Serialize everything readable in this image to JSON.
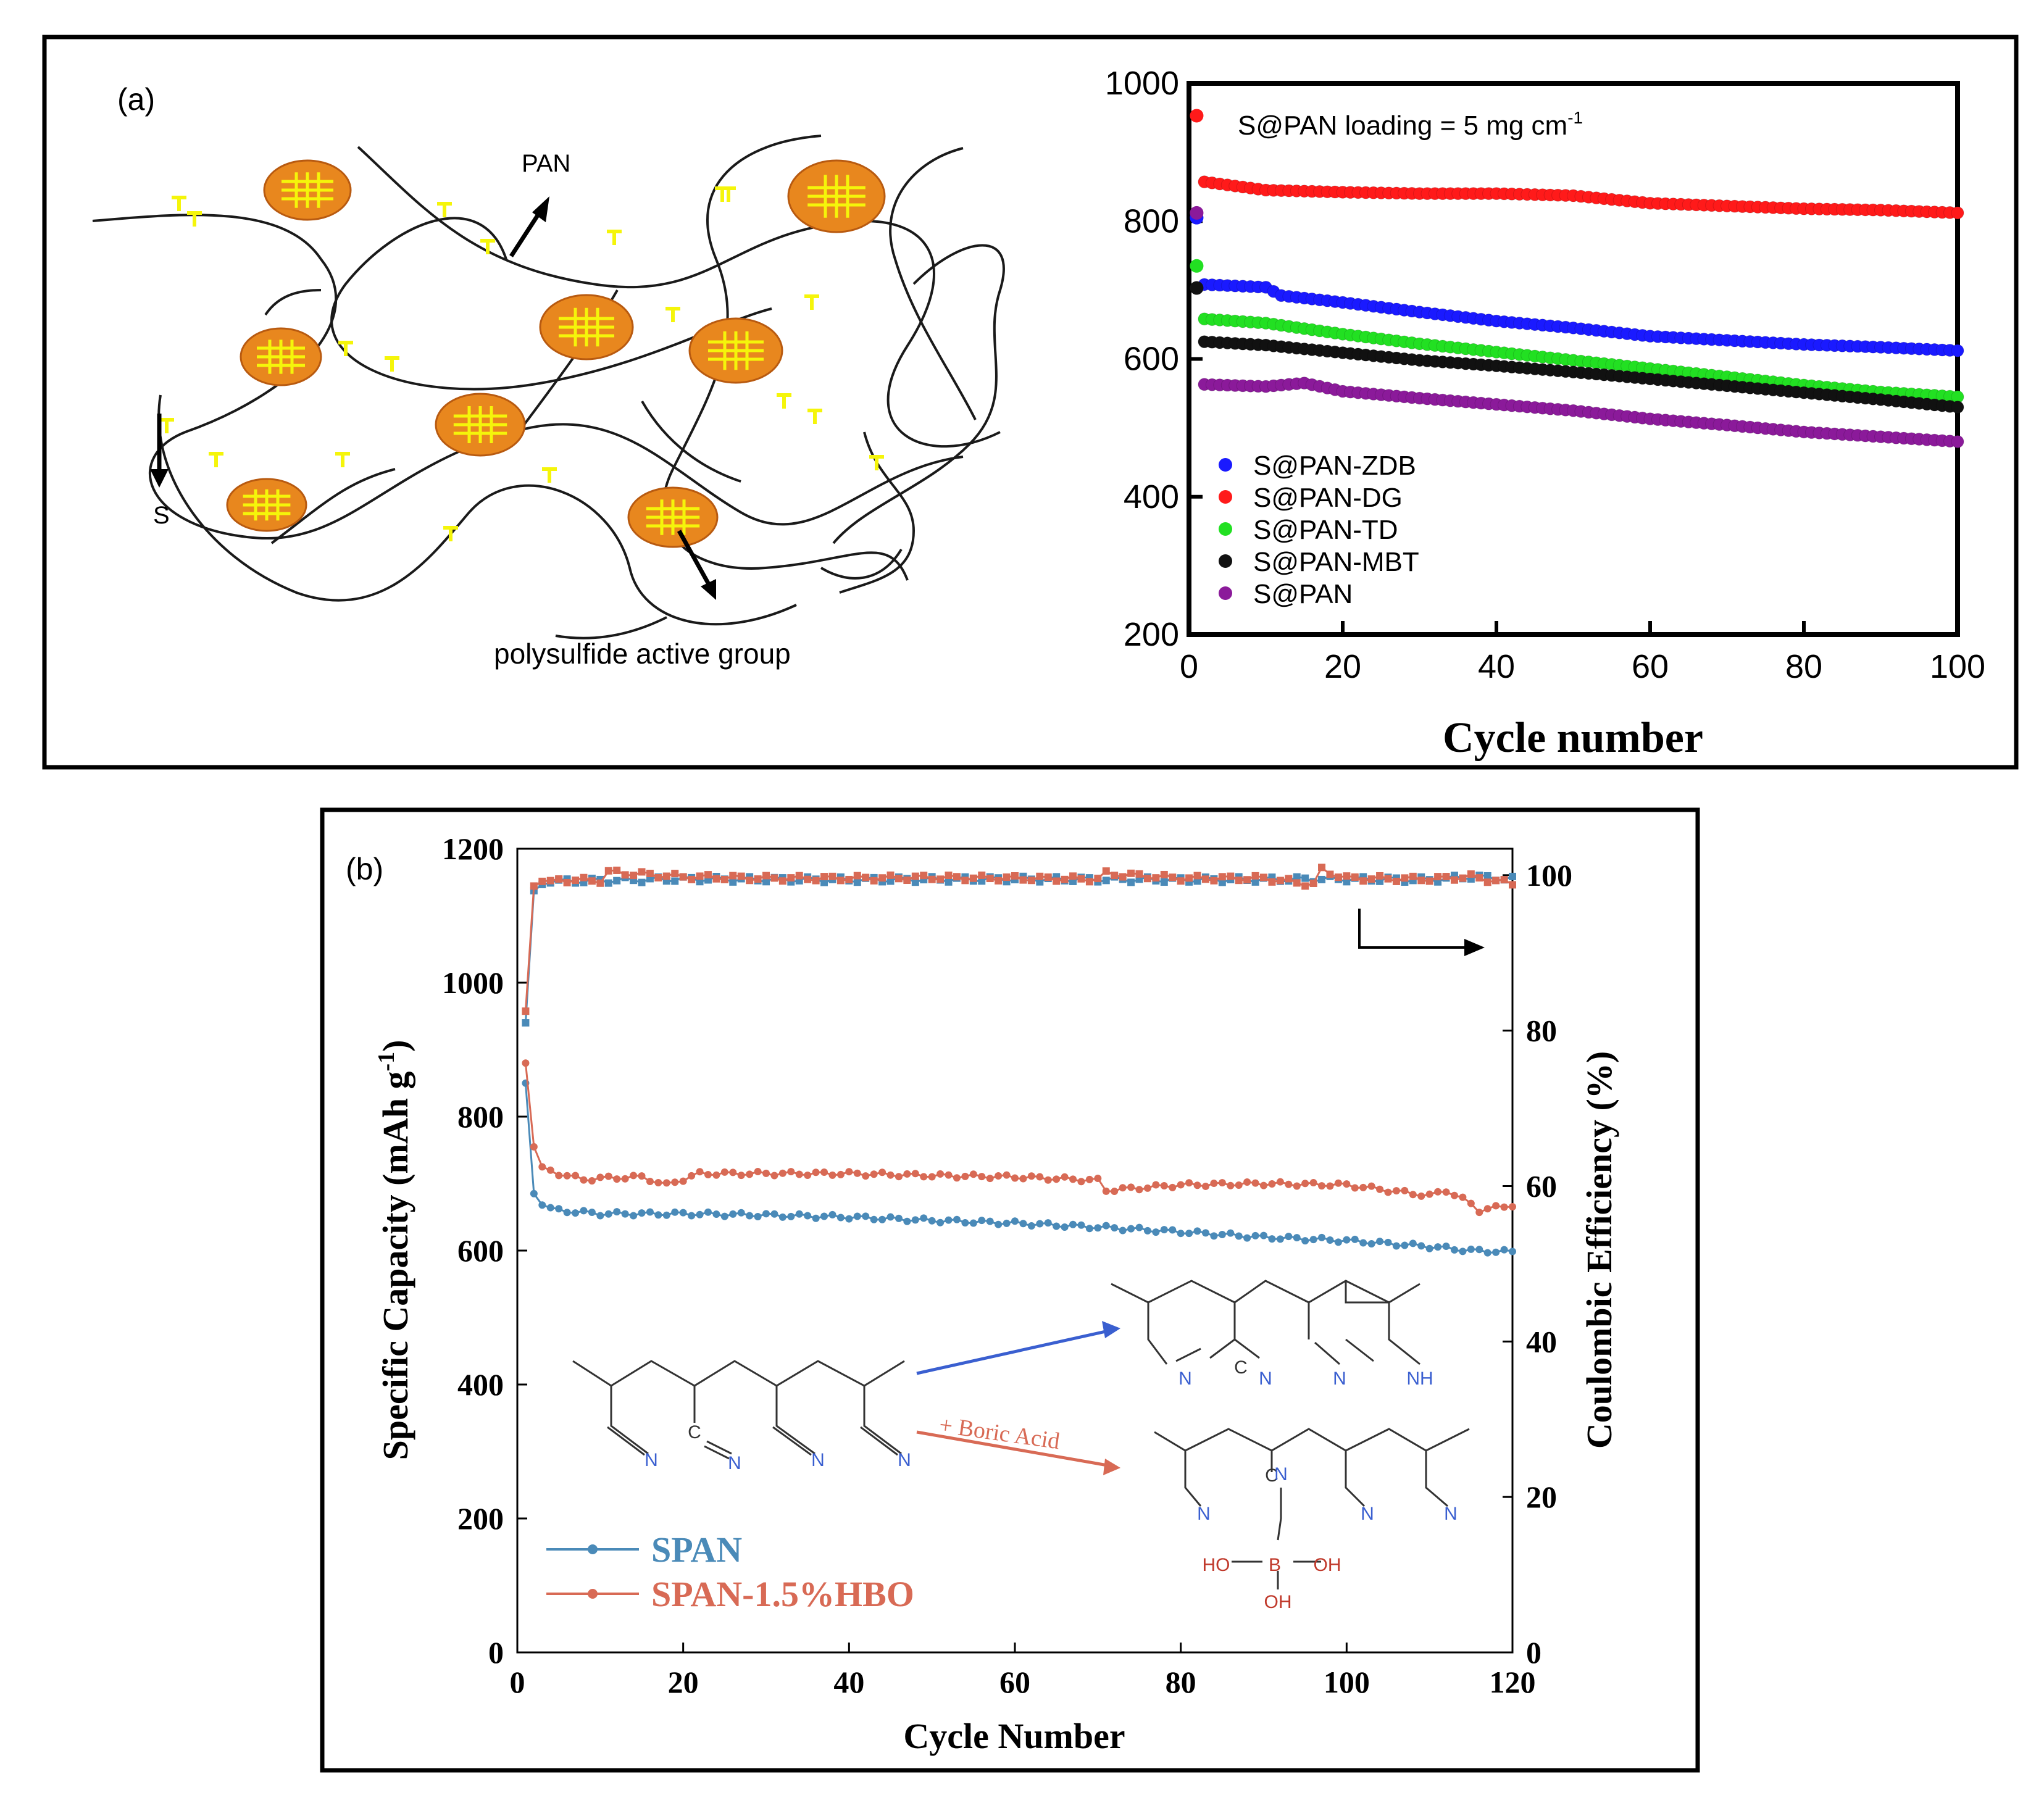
{
  "panel_a": {
    "label": "(a)",
    "schematic": {
      "pan_label": "PAN",
      "s_label": "S",
      "group_label": "polysulfide active group"
    }
  },
  "panel_b": {
    "label": "(b)",
    "scheme": {
      "reagent_label": "+ Boric Acid",
      "atom_labels": [
        "N",
        "C",
        "N",
        "N",
        "N",
        "N",
        "C",
        "N",
        "N",
        "NH",
        "C",
        "N",
        "N",
        "N",
        "N",
        "HO",
        "B",
        "OH",
        "OH"
      ]
    }
  },
  "colors": {
    "zdb": "#1a1aff",
    "dg": "#ff1a1a",
    "td": "#22e022",
    "mbt": "#111111",
    "span_a": "#8b1a9a",
    "span_b": "#4a8ab8",
    "hbo": "#d86a55",
    "orange": "#e8871e",
    "yellow": "#f5f50a",
    "blue_n": "#3a5fd0"
  },
  "chart_data": [
    {
      "type": "scatter",
      "xlabel": "Cycle number",
      "ylabel": "",
      "xlim": [
        0,
        100
      ],
      "ylim": [
        200,
        1000
      ],
      "xticks": [
        "0",
        "20",
        "40",
        "60",
        "80",
        "100"
      ],
      "yticks": [
        "200",
        "400",
        "600",
        "800",
        "1000"
      ],
      "annotation": "S@PAN loading = 5 mg cm",
      "annotation_sup": "-1",
      "legend_position": "bottom-left",
      "series": [
        {
          "name": "S@PAN-ZDB",
          "color_key": "zdb",
          "first_point": [
            1,
            805
          ],
          "x": [
            2,
            10,
            12,
            20,
            30,
            40,
            50,
            60,
            70,
            80,
            90,
            100
          ],
          "y": [
            708,
            704,
            692,
            682,
            668,
            655,
            645,
            633,
            627,
            621,
            617,
            612
          ]
        },
        {
          "name": "S@PAN-DG",
          "color_key": "dg",
          "first_point": [
            1,
            953
          ],
          "x": [
            2,
            10,
            20,
            30,
            40,
            50,
            60,
            70,
            80,
            90,
            100
          ],
          "y": [
            857,
            845,
            842,
            840,
            840,
            837,
            826,
            822,
            818,
            816,
            812
          ]
        },
        {
          "name": "S@PAN-TD",
          "color_key": "td",
          "first_point": [
            1,
            735
          ],
          "x": [
            2,
            10,
            20,
            30,
            40,
            50,
            60,
            70,
            80,
            90,
            100
          ],
          "y": [
            658,
            652,
            636,
            622,
            610,
            598,
            586,
            574,
            562,
            552,
            545
          ]
        },
        {
          "name": "S@PAN-MBT",
          "color_key": "mbt",
          "first_point": [
            1,
            703
          ],
          "x": [
            2,
            10,
            20,
            30,
            40,
            50,
            60,
            70,
            80,
            90,
            100
          ],
          "y": [
            625,
            620,
            609,
            598,
            590,
            581,
            571,
            561,
            551,
            541,
            530
          ]
        },
        {
          "name": "S@PAN",
          "color_key": "span_a",
          "first_point": [
            1,
            812
          ],
          "x": [
            2,
            10,
            15,
            20,
            30,
            40,
            50,
            60,
            70,
            80,
            90,
            100
          ],
          "y": [
            563,
            560,
            565,
            553,
            543,
            534,
            525,
            513,
            504,
            494,
            487,
            480
          ]
        }
      ]
    },
    {
      "type": "line",
      "xlabel": "Cycle Number",
      "ylabel": "Specific Capacity (mAh g",
      "ylabel_sup": "-1",
      "ylabel_end": ")",
      "y2label": "Coulombic Efficiency (%)",
      "xlim": [
        0,
        120
      ],
      "ylim": [
        0,
        1200
      ],
      "y2lim": [
        0,
        103.4
      ],
      "xticks": [
        "0",
        "20",
        "40",
        "60",
        "80",
        "100",
        "120"
      ],
      "yticks": [
        "0",
        "200",
        "400",
        "600",
        "800",
        "1000",
        "1200"
      ],
      "y2ticks": [
        "0",
        "20",
        "40",
        "60",
        "80",
        "100"
      ],
      "legend_position": "bottom-left",
      "series": [
        {
          "name": "SPAN",
          "axis": "left",
          "color_key": "span_b",
          "x": [
            1,
            2,
            3,
            5,
            10,
            20,
            30,
            40,
            50,
            60,
            70,
            80,
            90,
            100,
            110,
            115,
            120
          ],
          "y": [
            850,
            685,
            668,
            660,
            655,
            655,
            653,
            650,
            645,
            641,
            635,
            628,
            620,
            615,
            606,
            600,
            598
          ]
        },
        {
          "name": "SPAN-1.5%HBO",
          "axis": "left",
          "color_key": "hbo",
          "x": [
            1,
            2,
            3,
            5,
            8,
            10,
            15,
            18,
            22,
            30,
            40,
            50,
            60,
            70,
            71,
            80,
            90,
            100,
            105,
            110,
            112,
            115,
            116,
            120
          ],
          "y": [
            880,
            755,
            725,
            715,
            706,
            708,
            710,
            698,
            715,
            715,
            715,
            712,
            710,
            705,
            690,
            698,
            700,
            698,
            690,
            682,
            690,
            670,
            660,
            668
          ]
        },
        {
          "name": "",
          "axis": "right",
          "color_key": "span_b",
          "x": [
            1,
            2,
            3,
            5,
            10,
            20,
            40,
            60,
            80,
            100,
            110,
            115,
            120
          ],
          "y": [
            81,
            98,
            98.8,
            99.2,
            99.3,
            99.5,
            99.4,
            99.5,
            99.4,
            99.5,
            99.4,
            99.8,
            99.5
          ]
        },
        {
          "name": "",
          "axis": "right",
          "color_key": "hbo",
          "x": [
            1,
            2,
            3,
            5,
            10,
            11,
            20,
            30,
            40,
            50,
            60,
            70,
            71,
            80,
            90,
            96,
            97,
            100,
            110,
            115,
            120
          ],
          "y": [
            82.5,
            98.6,
            99.2,
            99.4,
            99.3,
            100.4,
            99.8,
            99.6,
            99.6,
            99.7,
            99.6,
            99.5,
            100.2,
            99.6,
            99.6,
            98.8,
            100.7,
            99.6,
            99.5,
            99.8,
            98.9
          ]
        }
      ]
    }
  ]
}
